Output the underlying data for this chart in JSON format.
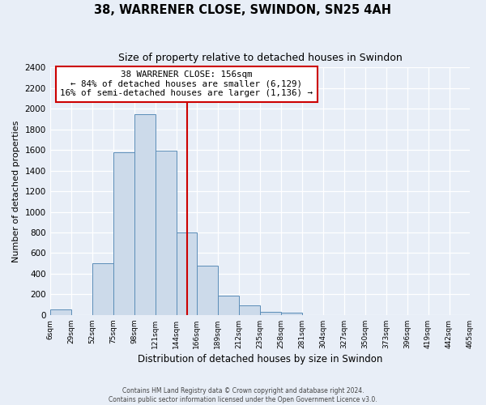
{
  "title": "38, WARRENER CLOSE, SWINDON, SN25 4AH",
  "subtitle": "Size of property relative to detached houses in Swindon",
  "xlabel": "Distribution of detached houses by size in Swindon",
  "ylabel": "Number of detached properties",
  "bin_edges": [
    6,
    29,
    52,
    75,
    98,
    121,
    144,
    166,
    189,
    212,
    235,
    258,
    281,
    304,
    327,
    350,
    373,
    396,
    419,
    442,
    465
  ],
  "bar_heights": [
    50,
    0,
    500,
    1575,
    1950,
    1590,
    800,
    480,
    190,
    90,
    30,
    20,
    0,
    0,
    0,
    0,
    0,
    0,
    0,
    0
  ],
  "bar_color": "#ccdaea",
  "bar_edge_color": "#5b8db8",
  "property_size": 156,
  "vline_color": "#cc0000",
  "annotation_line1": "38 WARRENER CLOSE: 156sqm",
  "annotation_line2": "← 84% of detached houses are smaller (6,129)",
  "annotation_line3": "16% of semi-detached houses are larger (1,136) →",
  "annotation_box_edge": "#cc0000",
  "annotation_box_bg": "white",
  "ylim": [
    0,
    2400
  ],
  "yticks": [
    0,
    200,
    400,
    600,
    800,
    1000,
    1200,
    1400,
    1600,
    1800,
    2000,
    2200,
    2400
  ],
  "tick_labels": [
    "6sqm",
    "29sqm",
    "52sqm",
    "75sqm",
    "98sqm",
    "121sqm",
    "144sqm",
    "166sqm",
    "189sqm",
    "212sqm",
    "235sqm",
    "258sqm",
    "281sqm",
    "304sqm",
    "327sqm",
    "350sqm",
    "373sqm",
    "396sqm",
    "419sqm",
    "442sqm",
    "465sqm"
  ],
  "footer1": "Contains HM Land Registry data © Crown copyright and database right 2024.",
  "footer2": "Contains public sector information licensed under the Open Government Licence v3.0.",
  "bg_color": "#e8eef7",
  "grid_color": "white"
}
